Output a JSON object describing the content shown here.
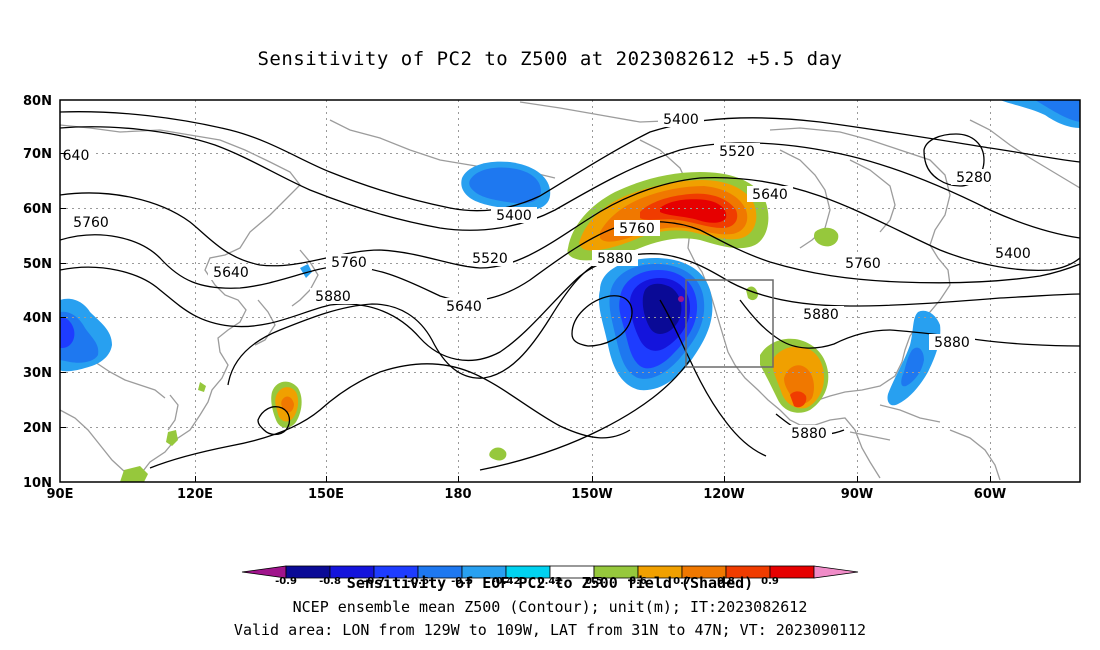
{
  "title": "Sensitivity of PC2 to Z500 at 2023082612 +5.5 day",
  "lat_labels": [
    "80N",
    "70N",
    "60N",
    "50N",
    "40N",
    "30N",
    "20N",
    "10N"
  ],
  "lon_labels": [
    "90E",
    "120E",
    "150E",
    "180",
    "150W",
    "120W",
    "90W",
    "60W"
  ],
  "contour_labels": [
    "5400",
    "5520",
    "5640",
    "5280",
    "5400",
    "640",
    "5760",
    "5640",
    "5760",
    "5880",
    "5400",
    "5520",
    "5640",
    "5760",
    "5880",
    "5760",
    "5880",
    "5880",
    "5880"
  ],
  "colorbar": {
    "labels": [
      "-0.9",
      "-0.8",
      "-0.7",
      "-0.6",
      "-0.5",
      "-0.42",
      "0.42",
      "0.5",
      "0.6",
      "0.7",
      "0.8",
      "0.9"
    ],
    "colors": [
      "#a0148c",
      "#0a0a96",
      "#1414dc",
      "#1e3cff",
      "#1e78f0",
      "#28a0f0",
      "#00d2f0",
      "#ffffff",
      "#96c83c",
      "#f0a000",
      "#f07800",
      "#f03c00",
      "#e60000",
      "#f08cc8"
    ]
  },
  "captions": {
    "line1": "Sensitivity of EOF PC2 to Z500 field (Shaded)",
    "line2": "NCEP ensemble mean Z500 (Contour); unit(m); IT:2023082612",
    "line3": "Valid area: LON from 129W to 109W, LAT from 31N to 47N; VT: 2023090112"
  }
}
